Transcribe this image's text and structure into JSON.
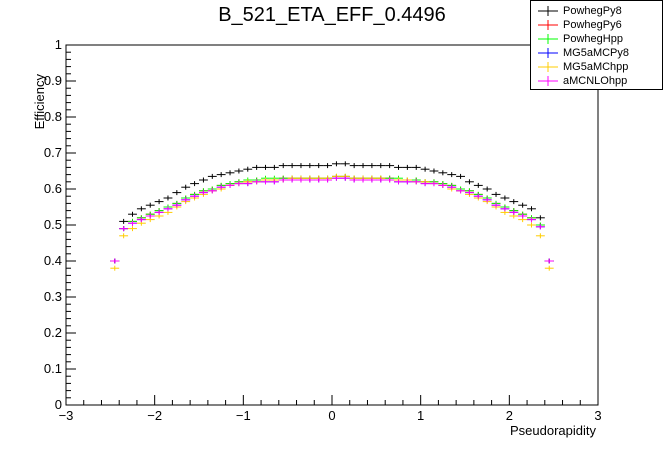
{
  "chart_data": {
    "type": "scatter",
    "title": "B_521_ETA_EFF_0.4496",
    "xlabel": "Pseudorapidity",
    "ylabel": "Efficiency",
    "xlim": [
      -3,
      3
    ],
    "ylim": [
      0,
      1
    ],
    "x_ticks": [
      "−3",
      "−2",
      "−1",
      "0",
      "1",
      "2",
      "3"
    ],
    "y_ticks": [
      "0",
      "0.1",
      "0.2",
      "0.3",
      "0.4",
      "0.5",
      "0.6",
      "0.7",
      "0.8",
      "0.9",
      "1"
    ],
    "grid": false,
    "legend_position": "top-right",
    "x": [
      -2.45,
      -2.35,
      -2.25,
      -2.15,
      -2.05,
      -1.95,
      -1.85,
      -1.75,
      -1.65,
      -1.55,
      -1.45,
      -1.35,
      -1.25,
      -1.15,
      -1.05,
      -0.95,
      -0.85,
      -0.75,
      -0.65,
      -0.55,
      -0.45,
      -0.35,
      -0.25,
      -0.15,
      -0.05,
      0.05,
      0.15,
      0.25,
      0.35,
      0.45,
      0.55,
      0.65,
      0.75,
      0.85,
      0.95,
      1.05,
      1.15,
      1.25,
      1.35,
      1.45,
      1.55,
      1.65,
      1.75,
      1.85,
      1.95,
      2.05,
      2.15,
      2.25,
      2.35,
      2.45
    ],
    "series": [
      {
        "name": "PowhegPy8",
        "color": "#000000",
        "values": [
          0.4,
          0.51,
          0.53,
          0.545,
          0.555,
          0.565,
          0.575,
          0.59,
          0.605,
          0.615,
          0.625,
          0.635,
          0.64,
          0.645,
          0.65,
          0.655,
          0.66,
          0.66,
          0.66,
          0.665,
          0.665,
          0.665,
          0.665,
          0.665,
          0.665,
          0.67,
          0.67,
          0.665,
          0.665,
          0.665,
          0.665,
          0.665,
          0.66,
          0.66,
          0.66,
          0.655,
          0.65,
          0.645,
          0.64,
          0.635,
          0.62,
          0.61,
          0.6,
          0.585,
          0.575,
          0.565,
          0.555,
          0.545,
          0.52,
          0.4
        ]
      },
      {
        "name": "PowhegPy6",
        "color": "#ff0000",
        "values": [
          0.4,
          0.49,
          0.51,
          0.52,
          0.53,
          0.54,
          0.55,
          0.56,
          0.575,
          0.585,
          0.595,
          0.6,
          0.61,
          0.615,
          0.62,
          0.62,
          0.625,
          0.625,
          0.625,
          0.63,
          0.63,
          0.63,
          0.63,
          0.63,
          0.63,
          0.635,
          0.635,
          0.63,
          0.63,
          0.63,
          0.63,
          0.63,
          0.625,
          0.625,
          0.625,
          0.62,
          0.62,
          0.615,
          0.61,
          0.6,
          0.595,
          0.585,
          0.575,
          0.56,
          0.55,
          0.54,
          0.53,
          0.52,
          0.5,
          0.4
        ]
      },
      {
        "name": "PowhegHpp",
        "color": "#00ff00",
        "values": [
          0.4,
          0.49,
          0.51,
          0.52,
          0.53,
          0.54,
          0.55,
          0.56,
          0.575,
          0.585,
          0.595,
          0.6,
          0.61,
          0.615,
          0.62,
          0.625,
          0.625,
          0.63,
          0.63,
          0.63,
          0.63,
          0.63,
          0.63,
          0.63,
          0.63,
          0.635,
          0.635,
          0.63,
          0.63,
          0.63,
          0.63,
          0.63,
          0.63,
          0.625,
          0.625,
          0.62,
          0.62,
          0.615,
          0.61,
          0.6,
          0.595,
          0.585,
          0.575,
          0.56,
          0.55,
          0.54,
          0.53,
          0.52,
          0.5,
          0.4
        ]
      },
      {
        "name": "MG5aMCPy8",
        "color": "#0000ff",
        "values": [
          0.4,
          0.49,
          0.505,
          0.515,
          0.525,
          0.535,
          0.545,
          0.555,
          0.57,
          0.58,
          0.59,
          0.595,
          0.605,
          0.61,
          0.615,
          0.615,
          0.62,
          0.62,
          0.62,
          0.625,
          0.625,
          0.625,
          0.625,
          0.625,
          0.625,
          0.63,
          0.63,
          0.625,
          0.625,
          0.625,
          0.625,
          0.625,
          0.62,
          0.62,
          0.62,
          0.615,
          0.615,
          0.61,
          0.605,
          0.595,
          0.59,
          0.58,
          0.57,
          0.555,
          0.545,
          0.535,
          0.525,
          0.515,
          0.495,
          0.4
        ]
      },
      {
        "name": "MG5aMChpp",
        "color": "#ffcc00",
        "values": [
          0.38,
          0.47,
          0.49,
          0.505,
          0.515,
          0.525,
          0.535,
          0.55,
          0.565,
          0.575,
          0.585,
          0.595,
          0.6,
          0.61,
          0.615,
          0.62,
          0.62,
          0.625,
          0.625,
          0.625,
          0.63,
          0.63,
          0.63,
          0.63,
          0.63,
          0.635,
          0.635,
          0.63,
          0.63,
          0.63,
          0.63,
          0.625,
          0.625,
          0.625,
          0.62,
          0.62,
          0.615,
          0.61,
          0.6,
          0.595,
          0.585,
          0.575,
          0.565,
          0.55,
          0.535,
          0.525,
          0.515,
          0.5,
          0.47,
          0.38
        ]
      },
      {
        "name": "aMCNLOhpp",
        "color": "#ff00ff",
        "values": [
          0.4,
          0.49,
          0.505,
          0.515,
          0.525,
          0.535,
          0.545,
          0.555,
          0.57,
          0.58,
          0.59,
          0.595,
          0.605,
          0.61,
          0.615,
          0.615,
          0.62,
          0.62,
          0.62,
          0.625,
          0.625,
          0.625,
          0.625,
          0.625,
          0.625,
          0.63,
          0.63,
          0.625,
          0.625,
          0.625,
          0.625,
          0.625,
          0.62,
          0.62,
          0.62,
          0.615,
          0.615,
          0.61,
          0.605,
          0.595,
          0.59,
          0.58,
          0.57,
          0.555,
          0.545,
          0.535,
          0.525,
          0.515,
          0.495,
          0.4
        ]
      }
    ]
  }
}
